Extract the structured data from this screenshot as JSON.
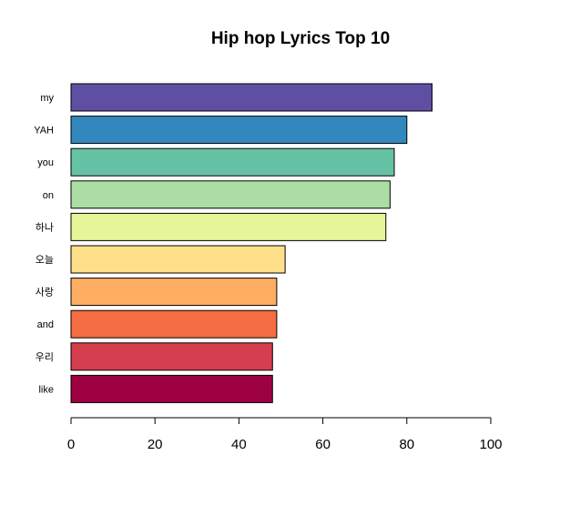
{
  "chart_data": {
    "type": "bar",
    "orientation": "horizontal",
    "title": "Hip hop Lyrics Top 10",
    "xlabel": "",
    "ylabel": "",
    "categories": [
      "my",
      "YAH",
      "you",
      "on",
      "하나",
      "오늘",
      "사랑",
      "and",
      "우리",
      "like"
    ],
    "values": [
      86,
      80,
      77,
      76,
      75,
      51,
      49,
      49,
      48,
      48
    ],
    "colors": [
      "#5e4fa2",
      "#3288bd",
      "#66c2a5",
      "#abdda4",
      "#e6f598",
      "#fee08b",
      "#fdae61",
      "#f46d43",
      "#d53e4f",
      "#9e0142"
    ],
    "xlim": [
      0,
      100
    ],
    "xticks": [
      0,
      20,
      40,
      60,
      80,
      100
    ],
    "grid": false,
    "legend": "none"
  }
}
